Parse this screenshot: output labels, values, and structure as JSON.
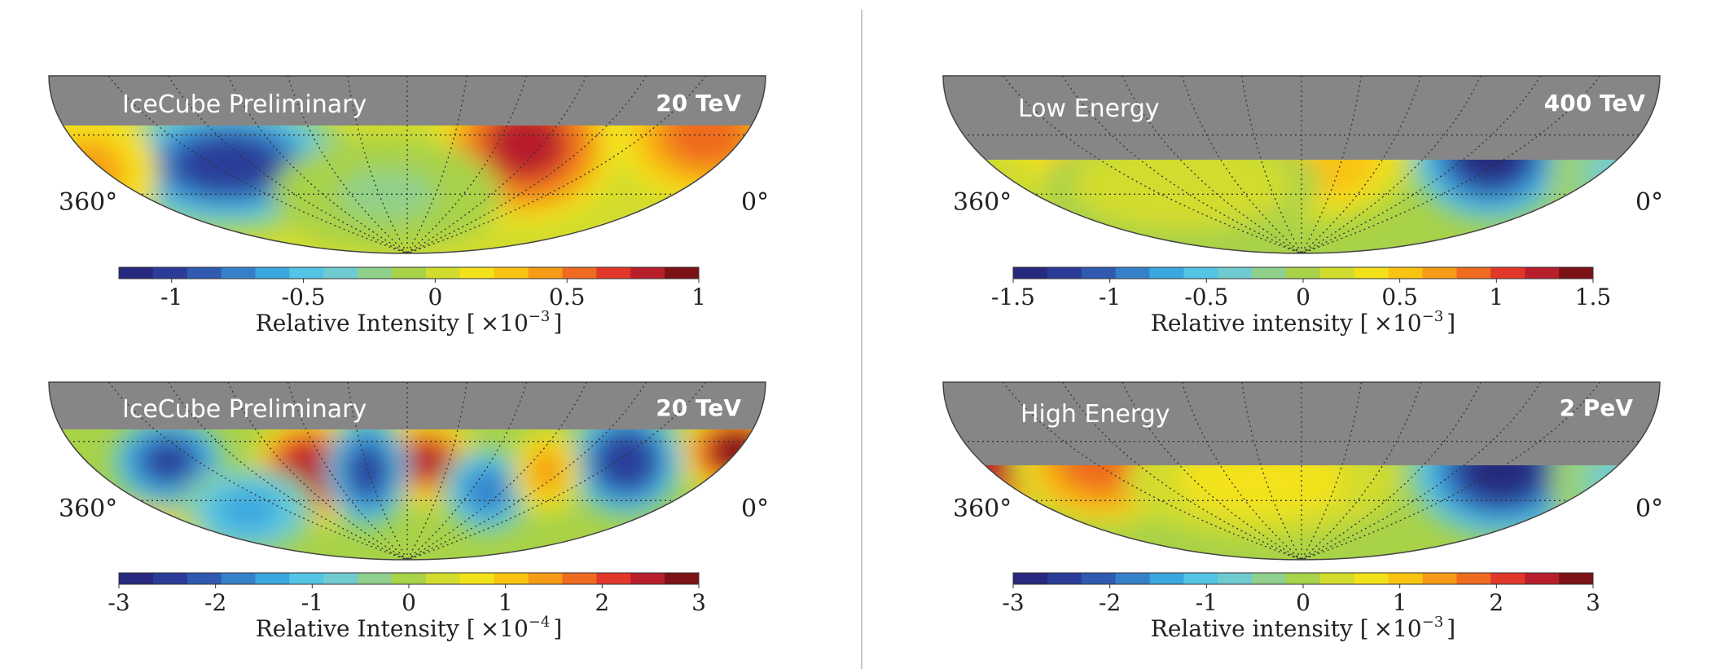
{
  "colormap": [
    "#27297e",
    "#2a3c98",
    "#2f5aaf",
    "#3680c9",
    "#3aa7de",
    "#52c4e6",
    "#6fcbd0",
    "#8fd08c",
    "#a8d248",
    "#d2dc2e",
    "#f3e21a",
    "#f9c312",
    "#f59b16",
    "#ef6b1f",
    "#e2382a",
    "#b81f2b",
    "#7d1216"
  ],
  "divider": {
    "color": "#c8c8c8"
  },
  "chart_data": [
    {
      "type": "heatmap",
      "panel": "top-left",
      "title": "IceCube Preliminary",
      "energy": "20 TeV",
      "ra_left_label": "360°",
      "ra_right_label": "0°",
      "colorbar": {
        "range": [
          -1.2,
          1
        ],
        "ticks": [
          -1,
          -0.5,
          0,
          0.5,
          1
        ],
        "tick_labels": [
          "-1",
          "-0.5",
          "0",
          "0.5",
          "1"
        ],
        "label": "Relative Intensity [",
        "exp_base": "×10",
        "exp": "−3",
        "label_end": "]"
      },
      "blobs": [
        {
          "ra": 270,
          "dec": -45,
          "value": -1.0,
          "width": 55,
          "height": 30
        },
        {
          "ra": 120,
          "dec": -35,
          "value": 0.8,
          "width": 40,
          "height": 35
        },
        {
          "ra": 30,
          "dec": -30,
          "value": 0.5,
          "width": 40,
          "height": 30
        },
        {
          "ra": 340,
          "dec": -50,
          "value": 0.4,
          "width": 30,
          "height": 30
        },
        {
          "ra": 190,
          "dec": -60,
          "value": -0.2,
          "width": 50,
          "height": 25
        }
      ]
    },
    {
      "type": "heatmap",
      "panel": "top-right",
      "title": "Low Energy",
      "energy": "400 TeV",
      "ra_left_label": "360°",
      "ra_right_label": "0°",
      "colorbar": {
        "range": [
          -1.5,
          1.5
        ],
        "ticks": [
          -1.5,
          -1,
          -0.5,
          0,
          0.5,
          1,
          1.5
        ],
        "tick_labels": [
          "-1.5",
          "-1",
          "-0.5",
          "0",
          "0.5",
          "1",
          "1.5"
        ],
        "label": "Relative intensity [",
        "exp_base": "×10",
        "exp": "−3",
        "label_end": "]"
      },
      "blobs": [
        {
          "ra": 85,
          "dec": -40,
          "value": -1.5,
          "width": 35,
          "height": 30
        },
        {
          "ra": 170,
          "dec": -40,
          "value": 0.6,
          "width": 40,
          "height": 30
        },
        {
          "ra": 280,
          "dec": -35,
          "value": 0.5,
          "width": 60,
          "height": 30
        },
        {
          "ra": 240,
          "dec": -55,
          "value": 0.2,
          "width": 60,
          "height": 25
        },
        {
          "ra": 20,
          "dec": -50,
          "value": -0.3,
          "width": 30,
          "height": 30
        }
      ]
    },
    {
      "type": "heatmap",
      "panel": "bottom-left",
      "title": "IceCube Preliminary",
      "energy": "20 TeV",
      "ra_left_label": "360°",
      "ra_right_label": "0°",
      "colorbar": {
        "range": [
          -3,
          3
        ],
        "ticks": [
          -3,
          -2,
          -1,
          0,
          1,
          2,
          3
        ],
        "tick_labels": [
          "-3",
          "-2",
          "-1",
          "0",
          "1",
          "2",
          "3"
        ],
        "label": "Relative Intensity [",
        "exp_base": "×10",
        "exp": "−4",
        "label_end": "]"
      },
      "blobs": [
        {
          "ra": 15,
          "dec": -35,
          "value": 3.0,
          "width": 25,
          "height": 20
        },
        {
          "ra": 70,
          "dec": -40,
          "value": -2.6,
          "width": 25,
          "height": 25
        },
        {
          "ra": 170,
          "dec": -40,
          "value": 2.4,
          "width": 22,
          "height": 20
        },
        {
          "ra": 230,
          "dec": -45,
          "value": 2.6,
          "width": 25,
          "height": 25
        },
        {
          "ra": 300,
          "dec": -40,
          "value": -2.5,
          "width": 25,
          "height": 20
        },
        {
          "ra": 200,
          "dec": -45,
          "value": -2.5,
          "width": 18,
          "height": 25
        },
        {
          "ra": 140,
          "dec": -55,
          "value": -1.8,
          "width": 20,
          "height": 20
        },
        {
          "ra": 260,
          "dec": -65,
          "value": -1.5,
          "width": 30,
          "height": 20
        },
        {
          "ra": 110,
          "dec": -45,
          "value": 1.5,
          "width": 15,
          "height": 20
        },
        {
          "ra": 330,
          "dec": -75,
          "value": 1.8,
          "width": 40,
          "height": 10
        }
      ]
    },
    {
      "type": "heatmap",
      "panel": "bottom-right",
      "title": "High Energy",
      "energy": "2 PeV",
      "ra_left_label": "360°",
      "ra_right_label": "0°",
      "colorbar": {
        "range": [
          -3,
          3
        ],
        "ticks": [
          -3,
          -2,
          -1,
          0,
          1,
          2,
          3
        ],
        "tick_labels": [
          "-3",
          "-2",
          "-1",
          "0",
          "1",
          "2",
          "3"
        ],
        "label": "Relative intensity [",
        "exp_base": "×10",
        "exp": "−3",
        "label_end": "]"
      },
      "blobs": [
        {
          "ra": 80,
          "dec": -45,
          "value": -3.0,
          "width": 40,
          "height": 30
        },
        {
          "ra": 330,
          "dec": -40,
          "value": 2.5,
          "width": 45,
          "height": 25
        },
        {
          "ra": 280,
          "dec": -40,
          "value": 1.8,
          "width": 40,
          "height": 30
        },
        {
          "ra": 200,
          "dec": -50,
          "value": 0.8,
          "width": 60,
          "height": 25
        },
        {
          "ra": 20,
          "dec": -50,
          "value": -0.6,
          "width": 30,
          "height": 30
        }
      ]
    }
  ]
}
